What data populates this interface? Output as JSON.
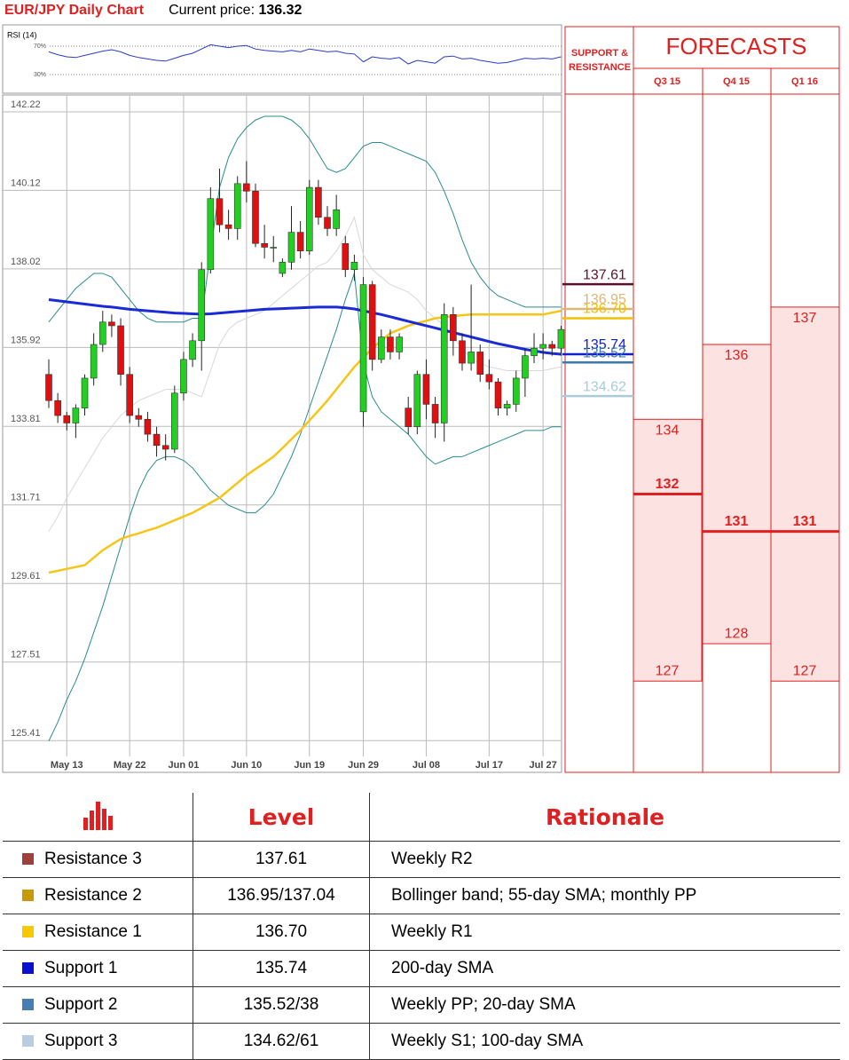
{
  "header": {
    "title": "EUR/JPY Daily Chart",
    "price_label": "Current price:",
    "price": "136.32"
  },
  "chart_data": {
    "type": "candlestick",
    "categories": [
      null,
      null,
      "May 13",
      null,
      null,
      null,
      null,
      null,
      null,
      "May 22",
      null,
      null,
      null,
      null,
      null,
      "Jun 01",
      null,
      null,
      null,
      null,
      null,
      null,
      "Jun 10",
      null,
      null,
      null,
      null,
      null,
      null,
      "Jun 19",
      null,
      null,
      null,
      null,
      null,
      "Jun 29",
      null,
      null,
      null,
      null,
      null,
      null,
      "Jul 08",
      null,
      null,
      null,
      null,
      null,
      null,
      "Jul 17",
      null,
      null,
      null,
      null,
      null,
      "Jul 27",
      null,
      null
    ],
    "open": [
      135.2,
      134.5,
      134.1,
      133.9,
      134.3,
      135.1,
      136.0,
      136.6,
      136.5,
      135.2,
      134.1,
      134.0,
      133.6,
      133.3,
      133.2,
      134.7,
      135.6,
      136.1,
      138.0,
      139.9,
      139.2,
      139.1,
      140.3,
      140.1,
      138.7,
      138.6,
      137.9,
      138.2,
      139.0,
      138.5,
      140.2,
      139.4,
      139.1,
      138.7,
      138.0,
      134.2,
      137.6,
      135.6,
      136.2,
      135.8,
      134.3,
      133.8,
      135.2,
      134.4,
      133.9,
      136.8,
      136.1,
      135.5,
      135.8,
      135.2,
      135.0,
      134.3,
      134.4,
      135.1,
      135.7,
      135.9,
      136.0,
      135.9
    ],
    "high": [
      135.6,
      134.7,
      134.2,
      134.4,
      135.2,
      136.3,
      136.9,
      136.8,
      136.7,
      135.4,
      134.3,
      134.2,
      133.8,
      133.6,
      134.9,
      135.8,
      136.3,
      138.2,
      140.2,
      140.7,
      139.6,
      140.5,
      140.9,
      140.3,
      139.2,
      138.9,
      138.3,
      139.7,
      139.3,
      140.4,
      140.4,
      139.7,
      140.0,
      138.9,
      138.4,
      137.8,
      137.7,
      136.4,
      136.4,
      136.3,
      134.6,
      135.3,
      135.6,
      134.6,
      137.1,
      137.0,
      136.3,
      137.6,
      136.0,
      135.6,
      135.1,
      134.5,
      135.3,
      135.9,
      136.3,
      136.3,
      136.1,
      136.5
    ],
    "low": [
      134.3,
      133.9,
      133.7,
      133.5,
      134.1,
      134.9,
      135.8,
      136.2,
      134.9,
      133.9,
      133.8,
      133.4,
      133.0,
      132.9,
      133.1,
      134.5,
      135.4,
      135.3,
      137.9,
      139.0,
      138.8,
      138.8,
      139.8,
      138.6,
      138.3,
      138.2,
      137.8,
      138.0,
      138.3,
      138.4,
      139.2,
      138.9,
      138.9,
      137.8,
      137.7,
      133.8,
      135.3,
      135.5,
      135.6,
      135.6,
      133.6,
      133.6,
      134.0,
      133.5,
      133.4,
      135.7,
      135.3,
      135.3,
      135.0,
      134.8,
      134.1,
      134.1,
      134.2,
      134.6,
      135.5,
      135.6,
      135.7,
      135.7
    ],
    "close": [
      134.5,
      134.1,
      133.9,
      134.3,
      135.1,
      136.0,
      136.6,
      136.5,
      135.2,
      134.1,
      134.0,
      133.6,
      133.3,
      133.2,
      134.7,
      135.6,
      136.1,
      138.0,
      139.9,
      139.2,
      139.1,
      140.3,
      140.1,
      138.7,
      138.6,
      138.6,
      138.2,
      139.0,
      138.5,
      140.2,
      139.4,
      139.1,
      139.6,
      138.0,
      138.2,
      137.6,
      135.6,
      136.2,
      135.8,
      136.2,
      133.8,
      135.2,
      134.4,
      133.9,
      136.8,
      136.1,
      135.5,
      135.8,
      135.2,
      135.0,
      134.3,
      134.4,
      135.1,
      135.7,
      135.9,
      136.0,
      135.9,
      136.4
    ],
    "up_color": "#22d022",
    "down_color": "#e01010",
    "lines": [
      {
        "color": "#d8d8d8",
        "values": [
          131.0,
          131.4,
          131.9,
          132.3,
          132.7,
          133.1,
          133.5,
          133.8,
          134.1,
          134.3,
          134.5,
          134.6,
          134.7,
          134.8,
          134.8,
          134.8,
          134.7,
          134.6,
          135.3,
          136.0,
          136.4,
          136.6,
          136.7,
          136.8,
          136.9,
          137.1,
          137.3,
          137.5,
          137.7,
          137.9,
          138.1,
          138.2,
          138.5,
          138.9,
          139.4,
          138.4,
          138.0,
          137.8,
          137.6,
          137.5,
          137.4,
          137.2,
          136.9,
          136.7,
          136.5,
          136.2,
          135.9,
          135.6,
          135.5,
          135.4,
          135.35,
          135.3,
          135.3,
          135.3,
          135.3,
          135.3,
          135.35,
          135.4
        ]
      },
      {
        "color": "#2a8c8c",
        "values": [
          136.6,
          136.9,
          137.2,
          137.5,
          137.7,
          137.9,
          137.9,
          137.8,
          137.5,
          137.2,
          136.9,
          136.7,
          136.6,
          136.6,
          136.6,
          136.6,
          136.7,
          136.7,
          138.5,
          140.2,
          141.0,
          141.5,
          141.8,
          142.0,
          142.1,
          142.1,
          142.1,
          142.0,
          141.8,
          141.5,
          141.1,
          140.7,
          140.6,
          140.7,
          141.0,
          141.3,
          141.4,
          141.4,
          141.3,
          141.2,
          141.1,
          141.0,
          140.9,
          140.6,
          140.1,
          139.5,
          138.8,
          138.2,
          137.8,
          137.5,
          137.3,
          137.2,
          137.1,
          137.0,
          137.0,
          137.0,
          137.0,
          137.0
        ]
      },
      {
        "color": "#2a8c8c",
        "values": [
          125.4,
          125.9,
          126.5,
          127.0,
          127.6,
          128.3,
          129.0,
          129.8,
          130.6,
          131.4,
          132.1,
          132.6,
          132.9,
          133.0,
          133.0,
          132.9,
          132.7,
          132.4,
          132.1,
          131.9,
          131.7,
          131.6,
          131.5,
          131.5,
          131.7,
          132.0,
          132.5,
          133.0,
          133.6,
          134.3,
          135.0,
          135.7,
          136.4,
          137.2,
          137.9,
          135.5,
          134.6,
          134.2,
          134.0,
          133.8,
          133.6,
          133.3,
          133.0,
          132.8,
          132.9,
          133.0,
          133.0,
          133.1,
          133.2,
          133.3,
          133.4,
          133.5,
          133.6,
          133.7,
          133.7,
          133.7,
          133.8,
          133.8
        ]
      },
      {
        "color": "#f5c518",
        "values": [
          129.9,
          129.95,
          130.0,
          130.05,
          130.1,
          130.3,
          130.5,
          130.65,
          130.8,
          130.88,
          130.95,
          131.03,
          131.1,
          131.2,
          131.3,
          131.4,
          131.5,
          131.63,
          131.77,
          131.9,
          132.1,
          132.3,
          132.5,
          132.67,
          132.83,
          133.0,
          133.23,
          133.47,
          133.7,
          133.97,
          134.23,
          134.5,
          134.8,
          135.1,
          135.4,
          135.65,
          135.9,
          136.1,
          136.3,
          136.4,
          136.5,
          136.57,
          136.63,
          136.7,
          136.73,
          136.76,
          136.78,
          136.8,
          136.8,
          136.8,
          136.8,
          136.8,
          136.8,
          136.8,
          136.8,
          136.8,
          136.85,
          136.9
        ]
      },
      {
        "color": "#1a2ad6",
        "values": [
          137.2,
          137.17,
          137.14,
          137.11,
          137.08,
          137.05,
          137.02,
          137.0,
          136.97,
          136.94,
          136.92,
          136.9,
          136.88,
          136.86,
          136.84,
          136.83,
          136.82,
          136.81,
          136.82,
          136.84,
          136.86,
          136.88,
          136.9,
          136.92,
          136.94,
          136.95,
          136.96,
          136.97,
          136.98,
          136.99,
          137.0,
          137.0,
          137.0,
          136.98,
          136.95,
          136.9,
          136.85,
          136.8,
          136.74,
          136.68,
          136.62,
          136.56,
          136.5,
          136.44,
          136.38,
          136.32,
          136.26,
          136.2,
          136.14,
          136.08,
          136.02,
          135.97,
          135.92,
          135.87,
          135.83,
          135.79,
          135.76,
          135.74
        ]
      }
    ],
    "ylim": [
      124.56,
      142.67
    ],
    "yticks": [
      142.22,
      140.12,
      138.02,
      135.92,
      133.81,
      131.71,
      129.61,
      127.51,
      125.41
    ],
    "grid": true,
    "rsi": {
      "label": "RSI (14)",
      "color": "#2a3ac8",
      "ylim": [
        0,
        100
      ],
      "yticks": [
        {
          "value": 70,
          "label": "70%"
        },
        {
          "value": 30,
          "label": "30%"
        }
      ],
      "values": [
        62,
        58,
        55,
        54,
        57,
        60,
        63,
        65,
        62,
        57,
        54,
        52,
        50,
        49,
        53,
        57,
        60,
        66,
        72,
        70,
        68,
        70,
        71,
        66,
        64,
        63,
        62,
        64,
        62,
        66,
        64,
        62,
        63,
        60,
        59,
        48,
        55,
        53,
        52,
        54,
        45,
        50,
        48,
        46,
        55,
        56,
        52,
        53,
        50,
        48,
        46,
        47,
        50,
        53,
        52,
        53,
        52,
        55
      ]
    },
    "levels": [
      {
        "value": 137.61,
        "color": "#5c1030"
      },
      {
        "value": 136.95,
        "color": "#dcb878"
      },
      {
        "value": 136.7,
        "label": "136.70",
        "color": "#f0c000"
      },
      {
        "value": 135.74,
        "color": "#1020c8"
      },
      {
        "value": 135.52,
        "color": "#3c78b0"
      },
      {
        "value": 134.62,
        "color": "#a8ccd8"
      }
    ],
    "forecasts": {
      "heading": "SUPPORT & RESISTANCE",
      "title": "FORECASTS",
      "color": "#e02020",
      "fill": "#fde2e2",
      "columns": [
        {
          "name": "Q3 15",
          "high": 134,
          "low": 127,
          "target": 132
        },
        {
          "name": "Q4 15",
          "high": 136,
          "low": 128,
          "target": 131
        },
        {
          "name": "Q1 16",
          "high": 137,
          "low": 127,
          "target": 131
        }
      ]
    }
  },
  "table": {
    "columns": [
      "Level",
      "Rationale"
    ],
    "rows": [
      {
        "name": "Resistance 3",
        "color": "#a0403c",
        "level": "137.61",
        "rationale": "Weekly R2"
      },
      {
        "name": "Resistance 2",
        "color": "#c89a00",
        "level": "136.95/137.04",
        "rationale": "Bollinger band; 55-day SMA; monthly PP"
      },
      {
        "name": "Resistance 1",
        "color": "#f8c800",
        "level": "136.70",
        "rationale": "Weekly R1"
      },
      {
        "name": "Support 1",
        "color": "#0a10d0",
        "level": "135.74",
        "rationale": "200-day SMA"
      },
      {
        "name": "Support 2",
        "color": "#4a7cb4",
        "level": "135.52/38",
        "rationale": "Weekly PP; 20-day SMA"
      },
      {
        "name": "Support 3",
        "color": "#b8cce4",
        "level": "134.62/61",
        "rationale": "Weekly S1; 100-day SMA"
      }
    ]
  }
}
